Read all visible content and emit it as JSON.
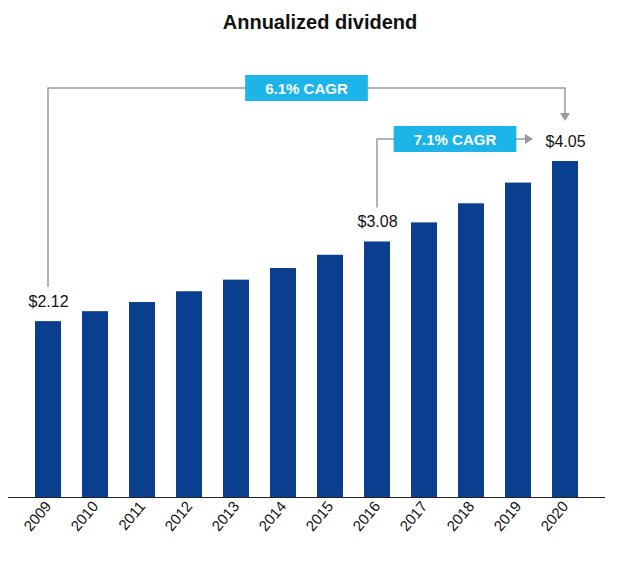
{
  "chart_data": {
    "type": "bar",
    "title": "Annualized dividend",
    "categories": [
      "2009",
      "2010",
      "2011",
      "2012",
      "2013",
      "2014",
      "2015",
      "2016",
      "2017",
      "2018",
      "2019",
      "2020"
    ],
    "values": [
      2.12,
      2.24,
      2.35,
      2.48,
      2.62,
      2.76,
      2.92,
      3.08,
      3.31,
      3.54,
      3.79,
      4.05
    ],
    "value_labels": [
      "$2.12",
      null,
      null,
      null,
      null,
      null,
      null,
      "$3.08",
      null,
      null,
      null,
      "$4.05"
    ],
    "data_labels": true,
    "color": "#0a3f8f",
    "ylim": [
      0,
      4.05
    ],
    "tick_labels": "x",
    "annotations": [
      {
        "text": "6.1% CAGR",
        "from": "2009",
        "to": "2020"
      },
      {
        "text": "7.1% CAGR",
        "from": "2016",
        "to": "2020"
      }
    ]
  }
}
